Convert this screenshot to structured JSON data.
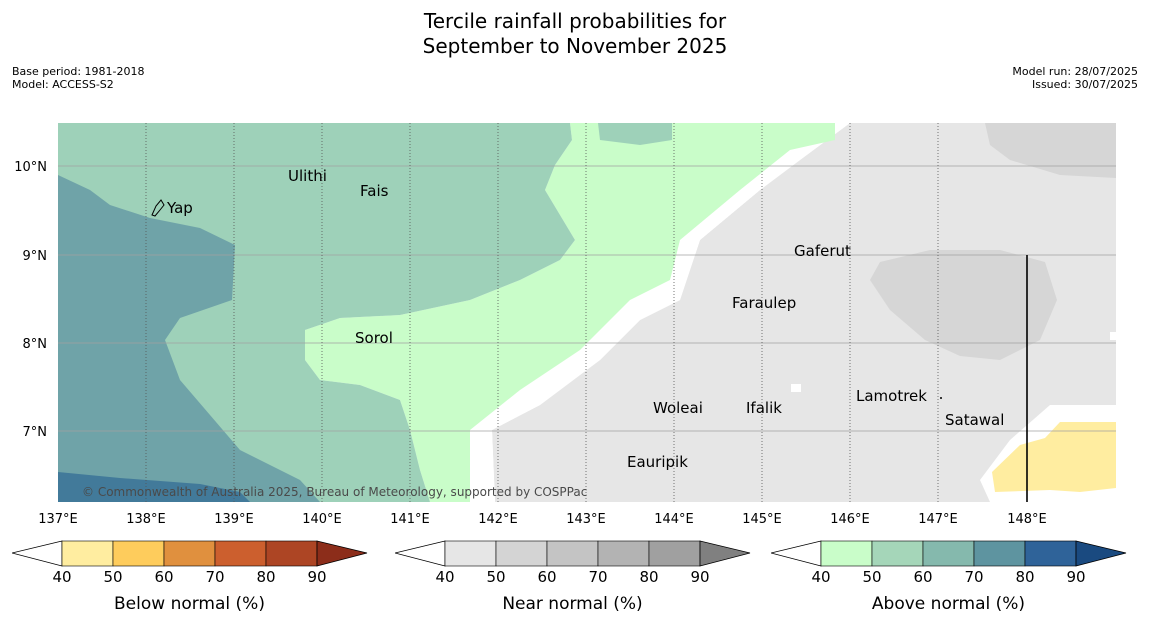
{
  "title_line1": "Tercile rainfall probabilities for",
  "title_line2": "September to November 2025",
  "meta_left": [
    "Base period: 1981-2018",
    "Model: ACCESS-S2"
  ],
  "meta_right": [
    "Model run: 28/07/2025",
    "Issued: 30/07/2025"
  ],
  "longitude_labels": [
    "137°E",
    "138°E",
    "139°E",
    "140°E",
    "141°E",
    "142°E",
    "143°E",
    "144°E",
    "145°E",
    "146°E",
    "147°E",
    "148°E"
  ],
  "latitude_labels": [
    "10°N",
    "9°N",
    "8°N",
    "7°N"
  ],
  "places": [
    "Yap",
    "Ulithi",
    "Fais",
    "Sorol",
    "Gaferut",
    "Faraulep",
    "Woleai",
    "Ifalik",
    "Lamotrek",
    "Satawal",
    "Eauripik"
  ],
  "copyright": "© Commonwealth of Australia 2025, Bureau of Meteorology, supported by COSPPac",
  "legends": [
    {
      "label": "Below normal (%)",
      "ticks": [
        "40",
        "50",
        "60",
        "70",
        "80",
        "90"
      ],
      "colors": [
        "#ffeda0",
        "#fecc5c",
        "#e0903e",
        "#cc5f2e",
        "#ad4524",
        "#8c2d1a"
      ]
    },
    {
      "label": "Near normal (%)",
      "ticks": [
        "40",
        "50",
        "60",
        "70",
        "80",
        "90"
      ],
      "colors": [
        "#e6e6e6",
        "#d4d4d4",
        "#c4c4c4",
        "#b3b3b3",
        "#a0a0a0",
        "#808080"
      ]
    },
    {
      "label": "Above normal (%)",
      "ticks": [
        "40",
        "50",
        "60",
        "70",
        "80",
        "90"
      ],
      "colors": [
        "#c9fdc9",
        "#a5d6b9",
        "#85b9ad",
        "#5e94a0",
        "#2f6399",
        "#1a4a80"
      ]
    }
  ],
  "colors": {
    "near_normal": "#e6e6e6",
    "near_normal_50": "#d6d6d6",
    "above_40": "#c9fdc9",
    "above_50": "#9ed1b9",
    "above_60": "#6fa3a8",
    "above_70": "#427a9a",
    "below_40": "#ffeda0"
  }
}
